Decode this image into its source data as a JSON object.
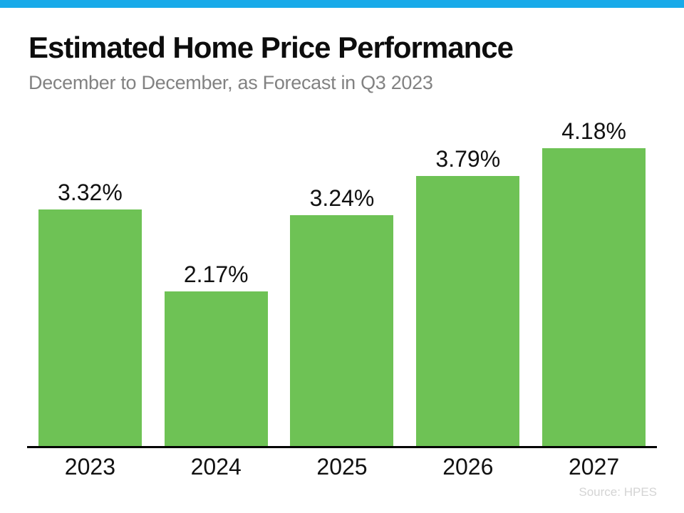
{
  "page": {
    "title": "Estimated Home Price Performance",
    "subtitle": "December to December, as Forecast in Q3 2023",
    "source": "Source: HPES"
  },
  "colors": {
    "top_accent_blue": "#18aae9",
    "bar_green": "#6ec255",
    "title_black": "#0d0d0d",
    "subtitle_gray": "#828282",
    "axis_black": "#000000",
    "source_gray": "#d4d4d4"
  },
  "chart_data": {
    "type": "bar",
    "title": "Estimated Home Price Performance",
    "subtitle": "December to December, as Forecast in Q3 2023",
    "categories": [
      "2023",
      "2024",
      "2025",
      "2026",
      "2027"
    ],
    "values": [
      3.32,
      2.17,
      3.24,
      3.79,
      4.18
    ],
    "value_labels": [
      "3.32%",
      "2.17%",
      "3.24%",
      "3.79%",
      "4.18%"
    ],
    "xlabel": "",
    "ylabel": "",
    "ylim": [
      0,
      4.5
    ],
    "grid": false,
    "legend": "none",
    "y_axis_shown": false,
    "bar_color": "#6ec255",
    "source": "Source: HPES"
  }
}
